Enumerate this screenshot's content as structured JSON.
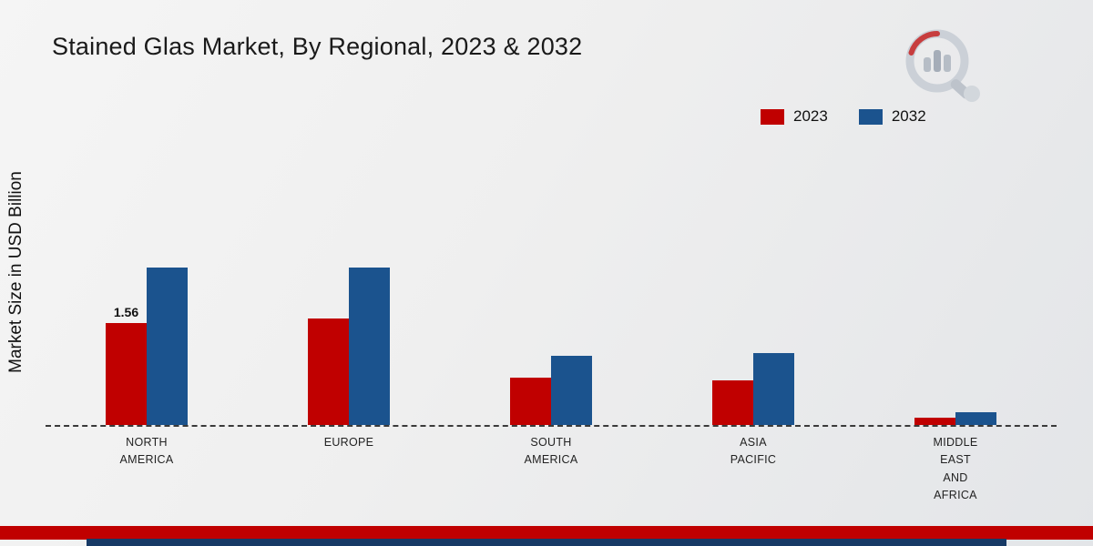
{
  "title": "Stained Glas Market, By Regional, 2023 & 2032",
  "y_axis_label": "Market Size in USD Billion",
  "colors": {
    "series_2023": "#c00000",
    "series_2032": "#1b538e",
    "bottom_band_red": "#c00000",
    "bottom_band_blue": "#173a66"
  },
  "legend": {
    "items": [
      {
        "label": "2023",
        "color": "#c00000"
      },
      {
        "label": "2032",
        "color": "#1b538e"
      }
    ]
  },
  "chart_data": {
    "type": "bar",
    "title": "Stained Glas Market, By Regional, 2023 & 2032",
    "xlabel": "",
    "ylabel": "Market Size in USD Billion",
    "ylim": [
      0,
      3
    ],
    "grid": false,
    "legend_position": "top-right",
    "categories": [
      "NORTH AMERICA",
      "EUROPE",
      "SOUTH AMERICA",
      "ASIA PACIFIC",
      "MIDDLE EAST AND AFRICA"
    ],
    "display_labels": [
      "NORTH\nAMERICA",
      "EUROPE",
      "SOUTH\nAMERICA",
      "ASIA\nPACIFIC",
      "MIDDLE\nEAST\nAND\nAFRICA"
    ],
    "series": [
      {
        "name": "2023",
        "color": "#c00000",
        "values": [
          1.56,
          1.62,
          0.72,
          0.68,
          0.11
        ]
      },
      {
        "name": "2032",
        "color": "#1b538e",
        "values": [
          2.4,
          2.4,
          1.05,
          1.1,
          0.2
        ]
      }
    ],
    "annotations": [
      {
        "text": "1.56",
        "category_index": 0,
        "series_index": 0
      }
    ]
  }
}
